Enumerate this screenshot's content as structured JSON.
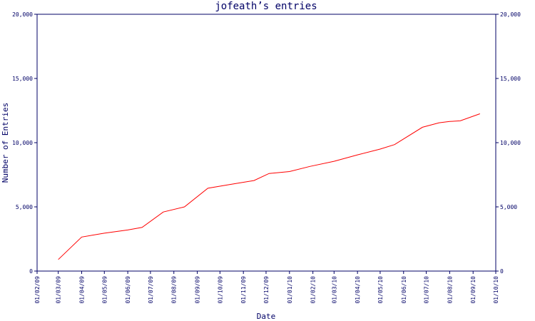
{
  "chart_data": {
    "type": "line",
    "title": "jofeath’s entries",
    "xlabel": "Date",
    "ylabel": "Number of Entries",
    "ylim": [
      0,
      20000
    ],
    "y_ticks": [
      0,
      5000,
      10000,
      15000,
      20000
    ],
    "y_tick_labels": [
      "0",
      "5,000",
      "10,000",
      "15,000",
      "20,000"
    ],
    "x_ticks": [
      "2009-02-01",
      "2009-03-01",
      "2009-04-01",
      "2009-05-01",
      "2009-06-01",
      "2009-07-01",
      "2009-08-01",
      "2009-09-01",
      "2009-10-01",
      "2009-11-01",
      "2009-12-01",
      "2010-01-01",
      "2010-02-01",
      "2010-03-01",
      "2010-04-01",
      "2010-05-01",
      "2010-06-01",
      "2010-07-01",
      "2010-08-01",
      "2010-09-01",
      "2010-10-01"
    ],
    "x_tick_labels": [
      "01/02/09",
      "01/03/09",
      "01/04/09",
      "01/05/09",
      "01/06/09",
      "01/07/09",
      "01/08/09",
      "01/09/09",
      "01/10/09",
      "01/11/09",
      "01/12/09",
      "01/01/10",
      "01/02/10",
      "01/03/10",
      "01/04/10",
      "01/05/10",
      "01/06/10",
      "01/07/10",
      "01/08/10",
      "01/09/10",
      "01/10/10"
    ],
    "xlim": [
      "2009-02-01",
      "2010-10-01"
    ],
    "grid": false,
    "series": [
      {
        "color": "#ff0000",
        "points": [
          [
            "2009-03-01",
            900
          ],
          [
            "2009-04-01",
            2650
          ],
          [
            "2009-05-01",
            2950
          ],
          [
            "2009-06-01",
            3200
          ],
          [
            "2009-06-20",
            3400
          ],
          [
            "2009-07-18",
            4600
          ],
          [
            "2009-08-15",
            5000
          ],
          [
            "2009-09-15",
            6450
          ],
          [
            "2009-10-15",
            6750
          ],
          [
            "2009-11-15",
            7050
          ],
          [
            "2009-12-05",
            7600
          ],
          [
            "2010-01-01",
            7750
          ],
          [
            "2010-01-28",
            8150
          ],
          [
            "2010-03-01",
            8550
          ],
          [
            "2010-04-01",
            9050
          ],
          [
            "2010-05-01",
            9500
          ],
          [
            "2010-05-20",
            9850
          ],
          [
            "2010-06-26",
            11200
          ],
          [
            "2010-07-18",
            11550
          ],
          [
            "2010-08-01",
            11650
          ],
          [
            "2010-08-15",
            11700
          ],
          [
            "2010-09-10",
            12250
          ]
        ]
      }
    ]
  }
}
